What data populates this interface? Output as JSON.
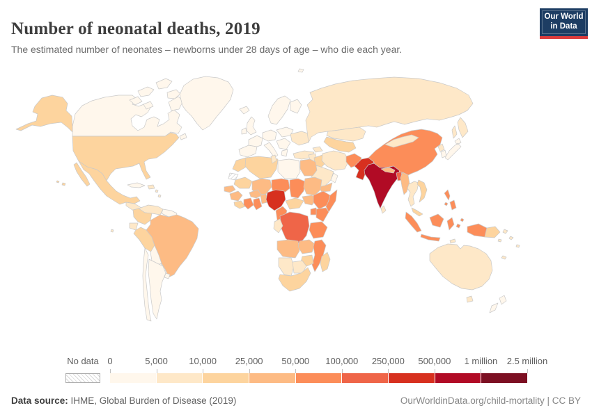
{
  "header": {
    "title": "Number of neonatal deaths, 2019",
    "subtitle": "The estimated number of neonates – newborns under 28 days of age – who die each year.",
    "logo": {
      "line1": "Our World",
      "line2": "in Data",
      "bg_color": "#1d3d63",
      "accent_color": "#dc3c3c"
    }
  },
  "legend": {
    "no_data_label": "No data",
    "tick_labels": [
      "0",
      "5,000",
      "10,000",
      "25,000",
      "50,000",
      "100,000",
      "250,000",
      "500,000",
      "1 million",
      "2.5 million"
    ],
    "colors": [
      "#fff7ec",
      "#fee8c8",
      "#fdd49e",
      "#fdbb84",
      "#fc8d59",
      "#ef6548",
      "#d7301f",
      "#b10b25",
      "#7c0f22"
    ]
  },
  "map": {
    "border_color": "#c9c9c9",
    "ocean_color": "#ffffff"
  },
  "chart_data": {
    "type": "choropleth",
    "title": "Number of neonatal deaths, 2019",
    "unit": "neonatal deaths per year",
    "legend_position": "bottom",
    "bins": [
      "0–5,000",
      "5,000–10,000",
      "10,000–25,000",
      "25,000–50,000",
      "50,000–100,000",
      "100,000–250,000",
      "250,000–500,000",
      "500,000–1 million",
      "1 million–2.5 million"
    ],
    "country_bins": {
      "Canada": 0,
      "Greenland": 0,
      "United States": 2,
      "Mexico": 2,
      "Cuba": 0,
      "Haiti": 1,
      "Caribbean": 1,
      "Central America": 1,
      "Venezuela": 1,
      "Colombia": 2,
      "Guyana": 0,
      "Ecuador": 1,
      "Peru": 2,
      "Brazil": 3,
      "Bolivia": 0,
      "Paraguay": 0,
      "Argentina": 0,
      "Chile": 0,
      "Uruguay": 0,
      "Iceland": 0,
      "United Kingdom": 0,
      "Ireland": 0,
      "Scandinavia": 0,
      "Finland": 0,
      "Iberia": 0,
      "France": 0,
      "Central Europe": 0,
      "Italy": 0,
      "Balkans": 0,
      "Greece": 0,
      "Poland": 0,
      "Eastern Europe": 1,
      "Russia": 1,
      "Svalbard": 0,
      "Kazakhstan": 1,
      "Central Asia": 2,
      "Caucasus": 1,
      "Turkey": 1,
      "Syria": 1,
      "Iraq": 2,
      "Iran": 1,
      "Saudi Arabia": 1,
      "Yemen": 3,
      "Oman": 0,
      "Afghanistan": 4,
      "Pakistan": 6,
      "India": 7,
      "Nepal": 3,
      "Bangladesh": 5,
      "Sri Lanka": 1,
      "Myanmar": 3,
      "China": 4,
      "Mongolia": 1,
      "North Korea": 1,
      "South Korea": 0,
      "Japan": 0,
      "Thailand": 1,
      "Vietnam": 2,
      "Malaysia": 2,
      "Indonesia": 4,
      "Timor": 1,
      "Papua New Guinea": 2,
      "Pacific Islands": 1,
      "Philippines": 4,
      "Australia": 1,
      "New Zealand": 0,
      "Morocco": 2,
      "Algeria": 2,
      "Tunisia": 1,
      "Libya": 0,
      "Egypt": 3,
      "Western Sahara": null,
      "Mauritania": 2,
      "Mali": 3,
      "Niger": 4,
      "Chad": 4,
      "Sudan": 3,
      "Senegal": 3,
      "Guinea": 3,
      "Sierra Leone": 2,
      "Ivory Coast": 4,
      "Ghana": 4,
      "Burkina Faso": 3,
      "Benin": 3,
      "Nigeria": 6,
      "Cameroon": 4,
      "Central African Republic": 2,
      "South Sudan": 3,
      "Ethiopia": 4,
      "Somalia": 4,
      "Kenya": 4,
      "Uganda": 4,
      "DR Congo": 5,
      "Congo": 1,
      "Tanzania": 4,
      "Angola": 3,
      "Zambia": 3,
      "Mozambique": 4,
      "Zimbabwe": 2,
      "Namibia": 1,
      "Botswana": 1,
      "South Africa": 2,
      "Madagascar": 2
    }
  },
  "footer": {
    "source_label": "Data source:",
    "source_text": " IHME, Global Burden of Disease (2019)",
    "link_text": "OurWorldinData.org/child-mortality | CC BY"
  }
}
